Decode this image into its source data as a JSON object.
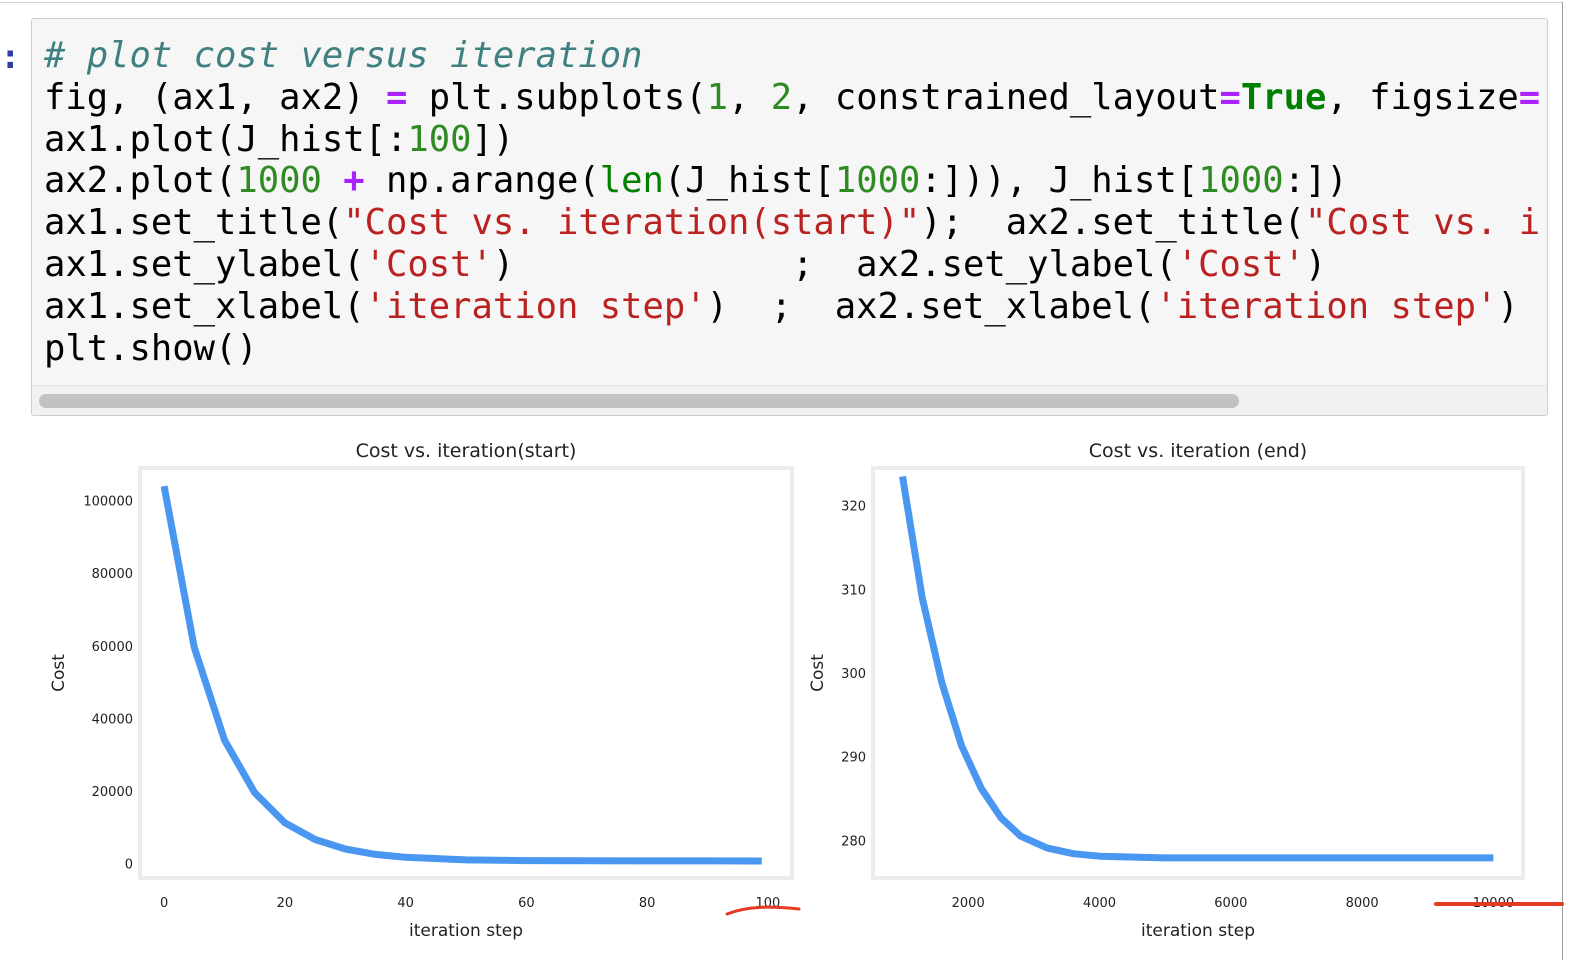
{
  "notebook": {
    "prompt": ":",
    "code_lines": [
      [
        {
          "t": "# plot cost versus iteration",
          "c": "cm"
        }
      ],
      [
        {
          "t": "fig, (ax1, ax2) "
        },
        {
          "t": "=",
          "c": "op"
        },
        {
          "t": " plt.subplots("
        },
        {
          "t": "1",
          "c": "nu"
        },
        {
          "t": ", "
        },
        {
          "t": "2",
          "c": "nu"
        },
        {
          "t": ", constrained_layout"
        },
        {
          "t": "=",
          "c": "op"
        },
        {
          "t": "True",
          "c": "kw"
        },
        {
          "t": ", figsize"
        },
        {
          "t": "=",
          "c": "op"
        }
      ],
      [
        {
          "t": "ax1.plot(J_hist[:"
        },
        {
          "t": "100",
          "c": "nu"
        },
        {
          "t": "])"
        }
      ],
      [
        {
          "t": "ax2.plot("
        },
        {
          "t": "1000",
          "c": "nu"
        },
        {
          "t": " "
        },
        {
          "t": "+",
          "c": "op"
        },
        {
          "t": " np.arange("
        },
        {
          "t": "len",
          "c": "bi"
        },
        {
          "t": "(J_hist["
        },
        {
          "t": "1000",
          "c": "nu"
        },
        {
          "t": ":])), J_hist["
        },
        {
          "t": "1000",
          "c": "nu"
        },
        {
          "t": ":])"
        }
      ],
      [
        {
          "t": "ax1.set_title("
        },
        {
          "t": "\"Cost vs. iteration(start)\"",
          "c": "st"
        },
        {
          "t": ");  ax2.set_title("
        },
        {
          "t": "\"Cost vs. i",
          "c": "st"
        }
      ],
      [
        {
          "t": "ax1.set_ylabel("
        },
        {
          "t": "'Cost'",
          "c": "st"
        },
        {
          "t": ")             ;  ax2.set_ylabel("
        },
        {
          "t": "'Cost'",
          "c": "st"
        },
        {
          "t": ")"
        }
      ],
      [
        {
          "t": "ax1.set_xlabel("
        },
        {
          "t": "'iteration step'",
          "c": "st"
        },
        {
          "t": ")  ;  ax2.set_xlabel("
        },
        {
          "t": "'iteration step'",
          "c": "st"
        },
        {
          "t": ")"
        }
      ],
      [
        {
          "t": "plt.show()"
        }
      ]
    ],
    "scroll_fraction": 0.8
  },
  "colors": {
    "line": "#4a97f2",
    "annotation": "#e23b22",
    "code_background": "#f6f6f6"
  },
  "chart_data": [
    {
      "type": "line",
      "title": "Cost vs. iteration(start)",
      "xlabel": "iteration step",
      "ylabel": "Cost",
      "xlim": [
        -4,
        104
      ],
      "ylim": [
        -4000,
        109000
      ],
      "xticks": [
        0,
        20,
        40,
        60,
        80,
        100
      ],
      "yticks": [
        0,
        20000,
        40000,
        60000,
        80000,
        100000
      ],
      "x": [
        0,
        5,
        10,
        15,
        20,
        25,
        30,
        35,
        40,
        50,
        60,
        70,
        80,
        90,
        99
      ],
      "values": [
        104000,
        59500,
        34000,
        19500,
        11200,
        6600,
        4000,
        2500,
        1700,
        1000,
        800,
        750,
        720,
        700,
        690
      ],
      "grid": false
    },
    {
      "type": "line",
      "title": "Cost vs. iteration (end)",
      "xlabel": "iteration step",
      "ylabel": "Cost",
      "xlim": [
        550,
        10450
      ],
      "ylim": [
        275.5,
        324.5
      ],
      "xticks": [
        2000,
        4000,
        6000,
        8000,
        10000
      ],
      "yticks": [
        280,
        290,
        300,
        310,
        320
      ],
      "x": [
        1000,
        1300,
        1600,
        1900,
        2200,
        2500,
        2800,
        3200,
        3600,
        4000,
        5000,
        6000,
        7000,
        8000,
        9000,
        9999
      ],
      "values": [
        323.5,
        309,
        298.8,
        291.3,
        286.2,
        282.7,
        280.5,
        279.1,
        278.4,
        278.1,
        277.9,
        277.9,
        277.9,
        277.9,
        277.9,
        277.9
      ],
      "grid": false
    }
  ]
}
